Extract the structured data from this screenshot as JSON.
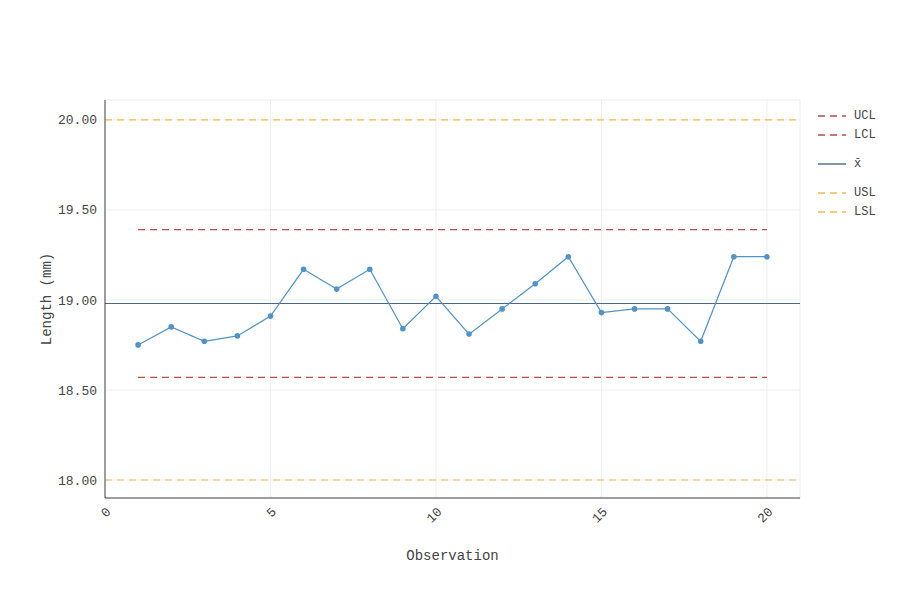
{
  "chart_data": {
    "type": "line",
    "x_label": "Observation",
    "y_label": "Length (mm)",
    "x": [
      1,
      2,
      3,
      4,
      5,
      6,
      7,
      8,
      9,
      10,
      11,
      12,
      13,
      14,
      15,
      16,
      17,
      18,
      19,
      20
    ],
    "values": [
      18.75,
      18.85,
      18.77,
      18.8,
      18.91,
      19.17,
      19.06,
      19.17,
      18.84,
      19.02,
      18.81,
      18.95,
      19.09,
      19.24,
      18.93,
      18.95,
      18.95,
      18.77,
      19.24,
      19.24
    ],
    "color": "#4f93c8",
    "marker": "circle",
    "line_style": "solid",
    "series": [
      {
        "name": "UCL",
        "color": "#b84a4a",
        "line_style": "dashed",
        "x": [
          1,
          20
        ],
        "values": [
          19.39,
          19.39
        ]
      },
      {
        "name": "LCL",
        "color": "#b84a4a",
        "line_style": "dashed",
        "x": [
          1,
          20
        ],
        "values": [
          18.57,
          18.57
        ]
      },
      {
        "name": "x̄",
        "color": "#4a6684",
        "line_style": "solid",
        "x": [
          0,
          21
        ],
        "values": [
          18.98,
          18.98
        ]
      },
      {
        "name": "USL",
        "color": "#f5b94a",
        "line_style": "dashed",
        "x": [
          0,
          21
        ],
        "values": [
          20,
          20
        ]
      },
      {
        "name": "LSL",
        "color": "#f5b94a",
        "line_style": "dashed",
        "x": [
          0,
          21
        ],
        "values": [
          18,
          18
        ]
      }
    ],
    "xlim": [
      0,
      21
    ],
    "xticks": [
      0,
      5,
      10,
      15,
      20
    ],
    "ylim": [
      17.9,
      20.11
    ],
    "yticks": [
      {
        "value": 18,
        "label": "18.00"
      },
      {
        "value": 18.5,
        "label": "18.50"
      },
      {
        "value": 19,
        "label": "19.00"
      },
      {
        "value": 19.5,
        "label": "19.50"
      },
      {
        "value": 20,
        "label": "20.00"
      }
    ],
    "grid": true,
    "legend": "top-right"
  }
}
